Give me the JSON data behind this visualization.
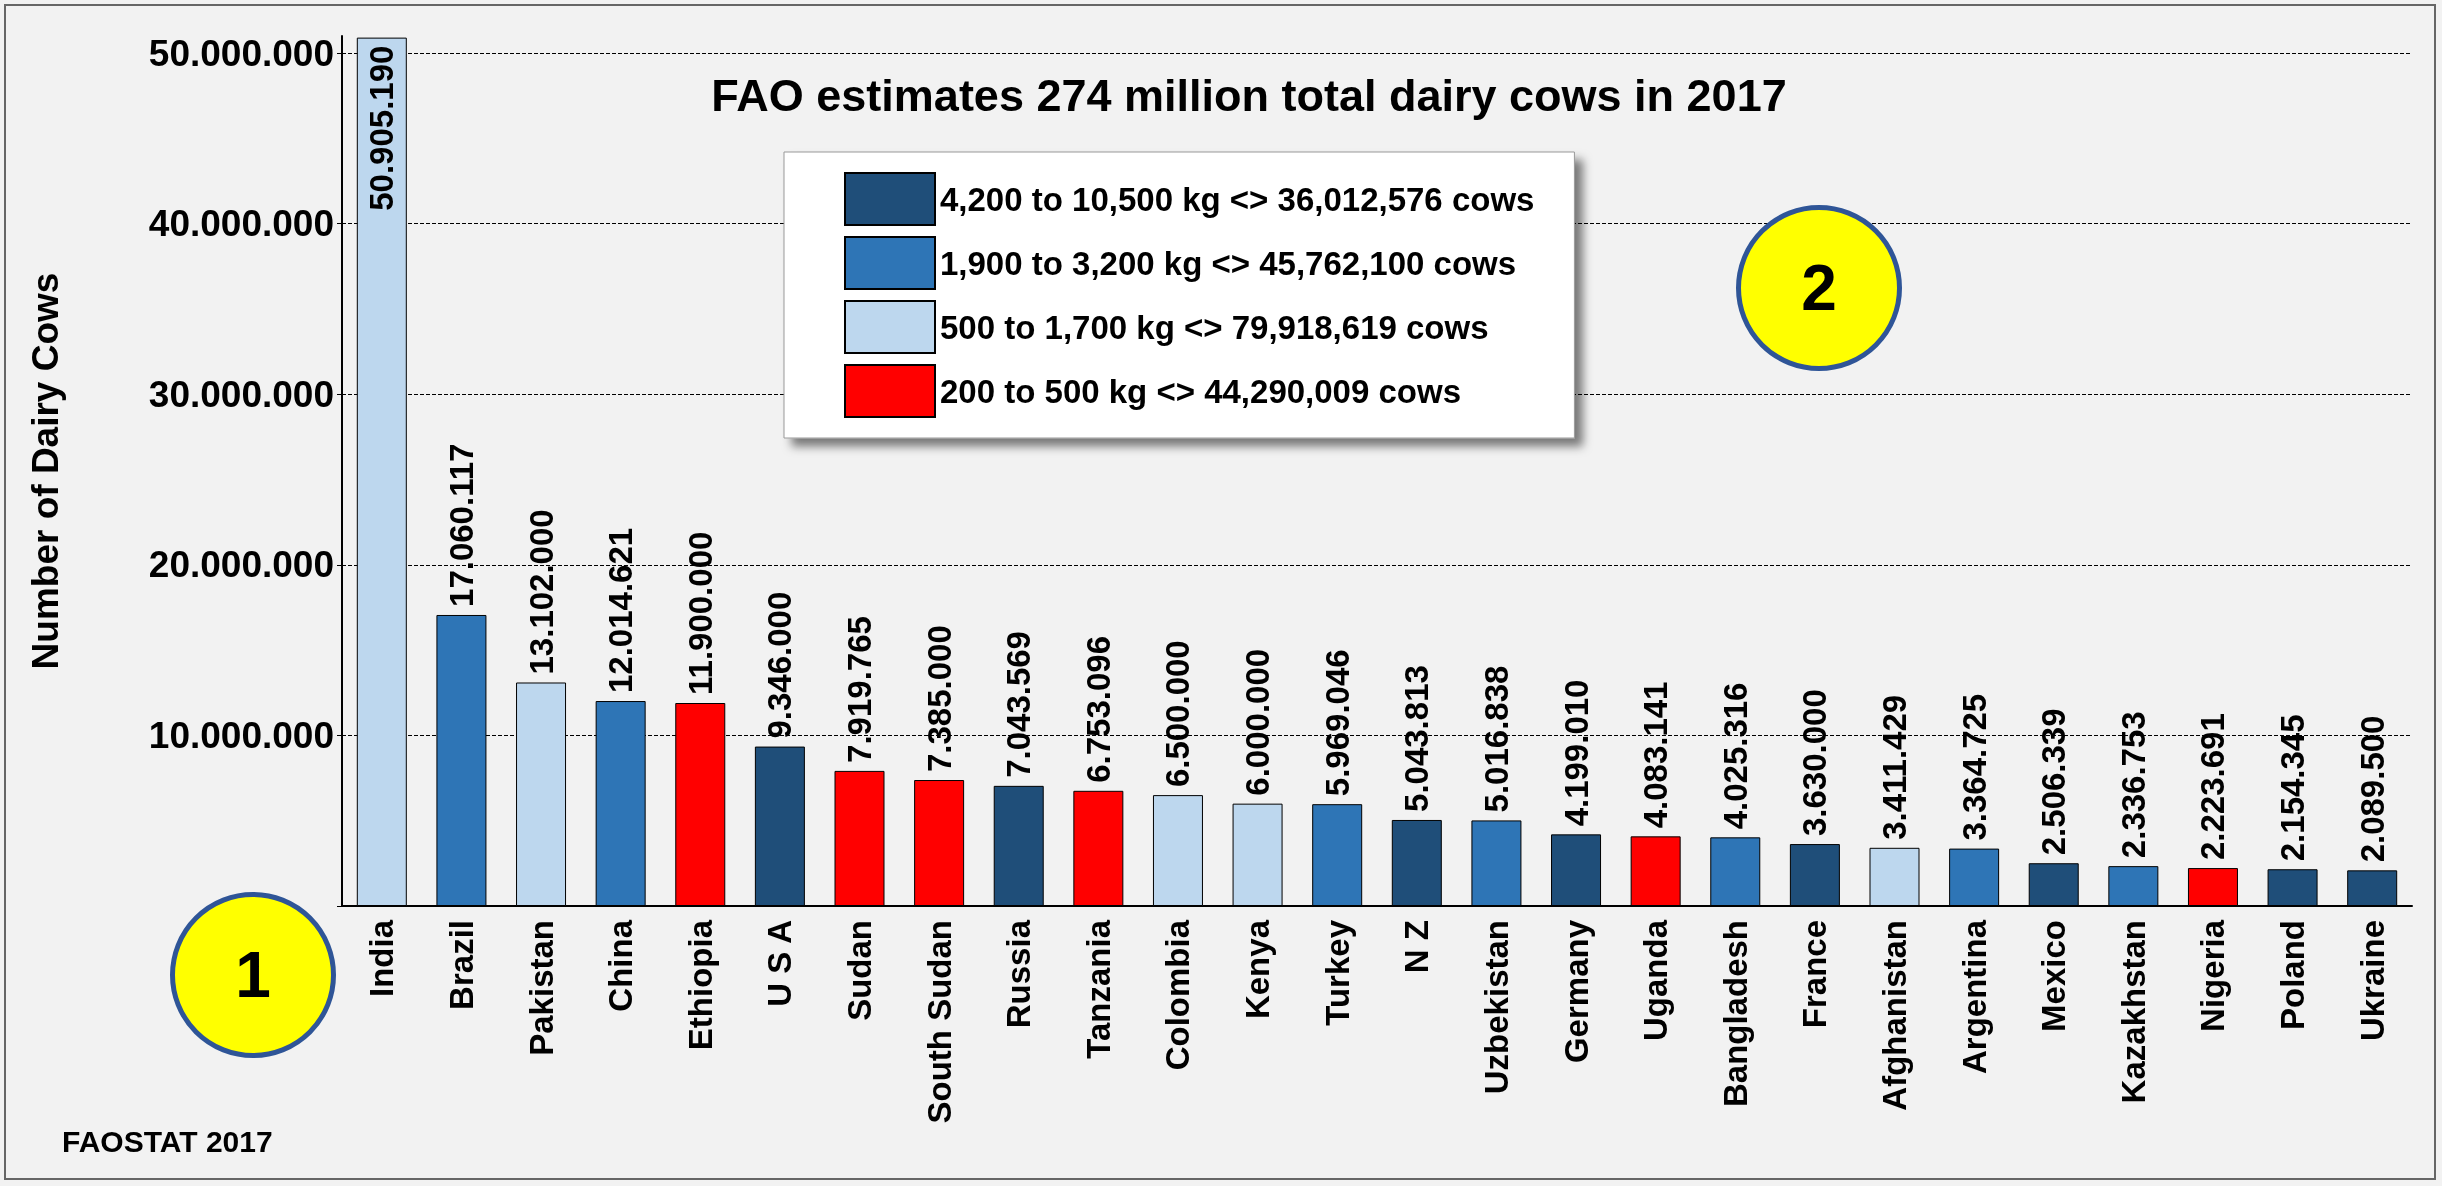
{
  "chart_data": {
    "type": "bar",
    "title": "FAO estimates 274 million total dairy cows in 2017",
    "ylabel": "Number of Dairy Cows",
    "categories": [
      "India",
      "Brazil",
      "Pakistan",
      "China",
      "Ethiopia",
      "U S A",
      "Sudan",
      "South Sudan",
      "Russia",
      "Tanzania",
      "Colombia",
      "Kenya",
      "Turkey",
      "N Z",
      "Uzbekistan",
      "Germany",
      "Uganda",
      "Bangladesh",
      "France",
      "Afghanistan",
      "Argentina",
      "Mexico",
      "Kazakhstan",
      "Nigeria",
      "Poland",
      "Ukraine"
    ],
    "series": [
      {
        "name": "4,200 to 10,500 kg <> 36,012,576 cows",
        "color": "#1f4e79",
        "values": [
          null,
          null,
          null,
          null,
          null,
          9346000,
          null,
          null,
          7043569,
          null,
          null,
          null,
          null,
          5043813,
          null,
          4199010,
          null,
          null,
          3630000,
          null,
          null,
          2506339,
          null,
          null,
          2154345,
          2089500
        ],
        "value_labels": [
          null,
          null,
          null,
          null,
          null,
          "9.346.000",
          null,
          null,
          "7.043.569",
          null,
          null,
          null,
          null,
          "5.043.813",
          null,
          "4.199.010",
          null,
          null,
          "3.630.000",
          null,
          null,
          "2.506.339",
          null,
          null,
          "2.154.345",
          "2.089.500"
        ]
      },
      {
        "name": "1,900 to 3,200 kg <> 45,762,100 cows",
        "color": "#2e75b6",
        "values": [
          null,
          17060117,
          null,
          12014621,
          null,
          null,
          null,
          null,
          null,
          null,
          null,
          null,
          5969046,
          null,
          5016838,
          null,
          null,
          4025316,
          null,
          null,
          3364725,
          null,
          2336753,
          null,
          null,
          null
        ],
        "value_labels": [
          null,
          "17.060.117",
          null,
          "12.014.621",
          null,
          null,
          null,
          null,
          null,
          null,
          null,
          null,
          "5.969.046",
          null,
          "5.016.838",
          null,
          null,
          "4.025.316",
          null,
          null,
          "3.364.725",
          null,
          "2.336.753",
          null,
          null,
          null
        ]
      },
      {
        "name": "500 to 1,700 kg <> 79,918,619 cows",
        "color": "#bdd7ee",
        "values": [
          50905190,
          null,
          13102000,
          null,
          null,
          null,
          null,
          null,
          null,
          null,
          6500000,
          6000000,
          null,
          null,
          null,
          null,
          null,
          null,
          null,
          3411429,
          null,
          null,
          null,
          null,
          null,
          null
        ],
        "value_labels": [
          "50.905.190",
          null,
          "13.102.000",
          null,
          null,
          null,
          null,
          null,
          null,
          null,
          "6.500.000",
          "6.000.000",
          null,
          null,
          null,
          null,
          null,
          null,
          null,
          "3.411.429",
          null,
          null,
          null,
          null,
          null,
          null
        ]
      },
      {
        "name": "200 to 500 kg <> 44,290,009 cows",
        "color": "#ff0000",
        "values": [
          null,
          null,
          null,
          null,
          11900000,
          null,
          7919765,
          7385000,
          null,
          6753096,
          null,
          null,
          null,
          null,
          null,
          null,
          4083141,
          null,
          null,
          null,
          null,
          null,
          null,
          2223691,
          null,
          null
        ],
        "value_labels": [
          null,
          null,
          null,
          null,
          "11.900.000",
          null,
          "7.919.765",
          "7.385.000",
          null,
          "6.753.096",
          null,
          null,
          null,
          null,
          null,
          null,
          "4.083.141",
          null,
          null,
          null,
          null,
          null,
          null,
          "2.223.691",
          null,
          null
        ]
      }
    ],
    "ylim": [
      0,
      51000000
    ],
    "yticks": [
      {
        "value": 0,
        "label": null
      },
      {
        "value": 10000000,
        "label": "10.000.000"
      },
      {
        "value": 20000000,
        "label": "20.000.000"
      },
      {
        "value": 30000000,
        "label": "30.000.000"
      },
      {
        "value": 40000000,
        "label": "40.000.000"
      },
      {
        "value": 50000000,
        "label": "50.000.000"
      }
    ],
    "grid": "y",
    "legend": "top",
    "annotations": [
      "1",
      "2",
      "FAOSTAT 2017"
    ]
  }
}
